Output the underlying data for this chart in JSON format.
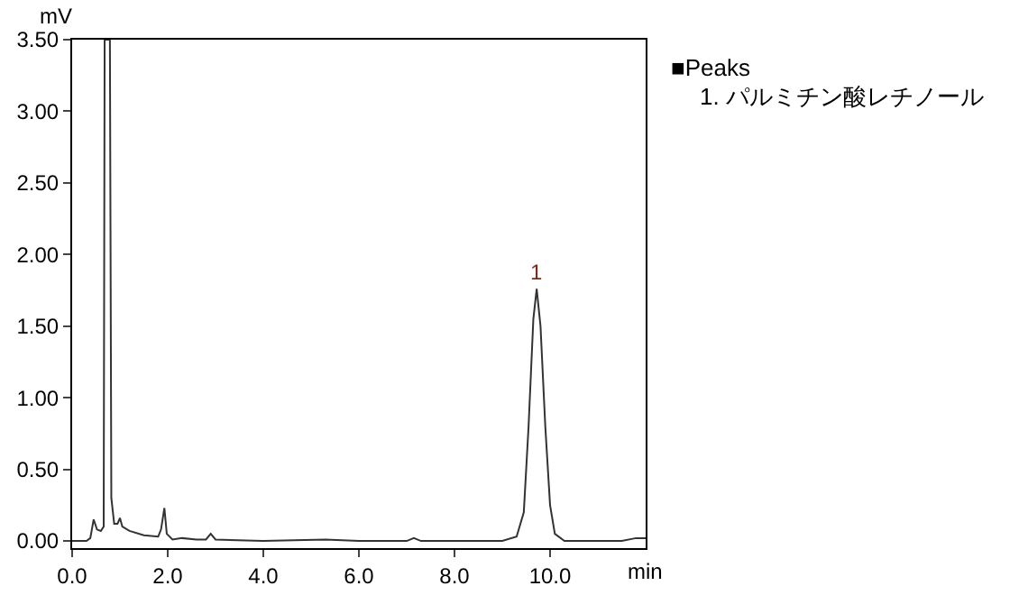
{
  "chart_data": {
    "type": "line",
    "xlabel": "min",
    "ylabel": "mV",
    "x": [
      0,
      0.3,
      0.38,
      0.45,
      0.52,
      0.6,
      0.66,
      0.68,
      0.79,
      0.82,
      0.88,
      0.95,
      1.0,
      1.05,
      1.2,
      1.5,
      1.8,
      1.86,
      1.93,
      1.98,
      2.1,
      2.3,
      2.6,
      2.8,
      2.9,
      3.0,
      4.0,
      5.3,
      6.0,
      7.0,
      7.15,
      7.3,
      9.0,
      9.3,
      9.45,
      9.55,
      9.65,
      9.72,
      9.8,
      9.9,
      10.0,
      10.1,
      10.3,
      11.5,
      11.8,
      12.0
    ],
    "series": [
      {
        "color": "#333333",
        "values": [
          0,
          0,
          0.02,
          0.15,
          0.08,
          0.07,
          0.1,
          3.5,
          3.5,
          0.3,
          0.12,
          0.12,
          0.16,
          0.1,
          0.07,
          0.04,
          0.03,
          0.08,
          0.23,
          0.05,
          0.01,
          0.02,
          0.01,
          0.01,
          0.05,
          0.01,
          0,
          0.01,
          0,
          0,
          0.02,
          0,
          0,
          0.03,
          0.2,
          0.8,
          1.55,
          1.76,
          1.5,
          0.8,
          0.25,
          0.05,
          0,
          0,
          0.02,
          0.02
        ]
      }
    ],
    "xlim": [
      0,
      12
    ],
    "xticks": [
      {
        "value": 0,
        "label": "0.0"
      },
      {
        "value": 2,
        "label": "2.0"
      },
      {
        "value": 4,
        "label": "4.0"
      },
      {
        "value": 6,
        "label": "6.0"
      },
      {
        "value": 8,
        "label": "8.0"
      },
      {
        "value": 10,
        "label": "10.0"
      }
    ],
    "ylim": [
      -0.05,
      3.5
    ],
    "yticks": [
      {
        "value": 0,
        "label": "0.00"
      },
      {
        "value": 0.5,
        "label": "0.50"
      },
      {
        "value": 1,
        "label": "1.00"
      },
      {
        "value": 1.5,
        "label": "1.50"
      },
      {
        "value": 2,
        "label": "2.00"
      },
      {
        "value": 2.5,
        "label": "2.50"
      },
      {
        "value": 3,
        "label": "3.00"
      },
      {
        "value": 3.5,
        "label": "3.50"
      }
    ],
    "grid": false,
    "marker": "none",
    "line_style": "solid",
    "annotations": [
      {
        "text": "1",
        "x": 9.72,
        "y": 1.76
      },
      "■Peaks",
      "1. パルミチン酸レチノール"
    ]
  }
}
